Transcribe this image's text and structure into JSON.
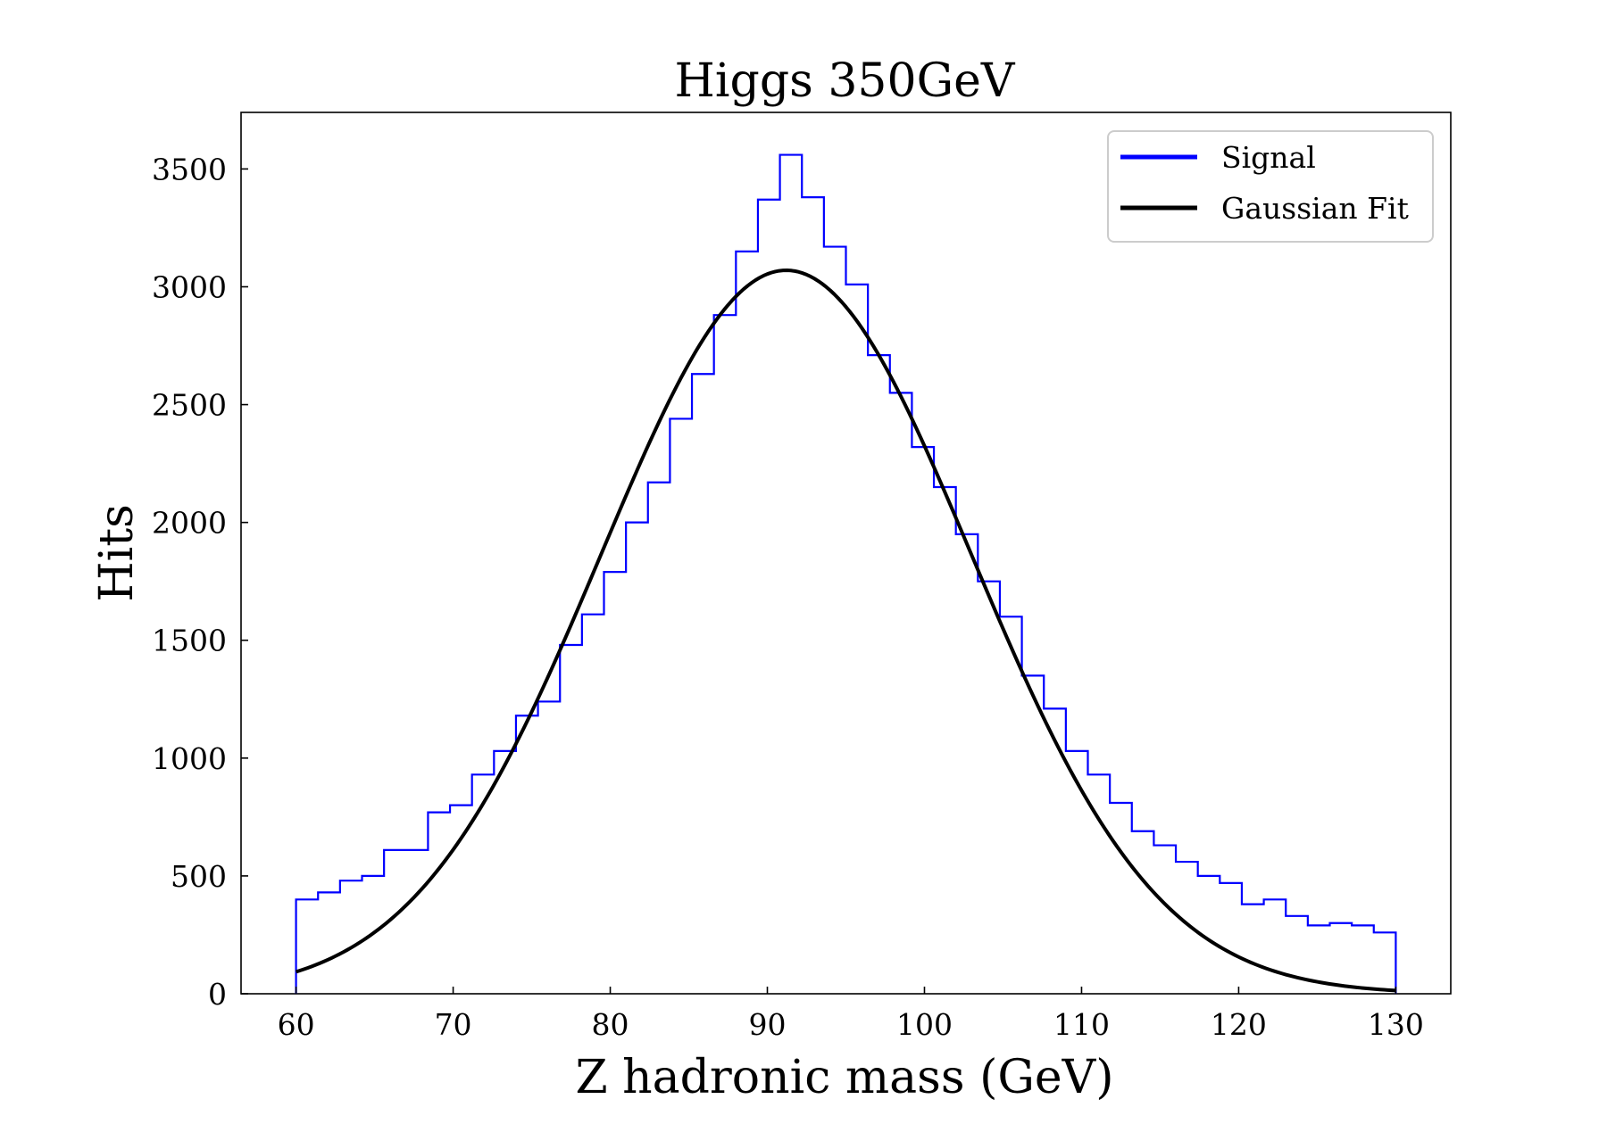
{
  "chart_data": {
    "type": "histogram",
    "title": "Higgs 350GeV",
    "xlabel": "Z hadronic mass (GeV)",
    "ylabel": "Hits",
    "xlim": [
      56.5,
      133.5
    ],
    "ylim": [
      0,
      3740
    ],
    "xticks": [
      60,
      70,
      80,
      90,
      100,
      110,
      120,
      130
    ],
    "yticks": [
      0,
      500,
      1000,
      1500,
      2000,
      2500,
      3000,
      3500
    ],
    "grid": false,
    "legend_position": "top-right",
    "bin_range": [
      60,
      130
    ],
    "series": [
      {
        "name": "Signal",
        "kind": "step-histogram",
        "color": "#0000ff",
        "values": [
          400,
          430,
          480,
          500,
          610,
          610,
          770,
          800,
          930,
          1030,
          1180,
          1240,
          1480,
          1610,
          1790,
          2000,
          2170,
          2440,
          2630,
          2880,
          3150,
          3370,
          3560,
          3380,
          3170,
          3010,
          2710,
          2550,
          2320,
          2150,
          1950,
          1750,
          1600,
          1350,
          1210,
          1030,
          930,
          810,
          690,
          630,
          560,
          500,
          470,
          380,
          400,
          330,
          290,
          300,
          290,
          260
        ]
      },
      {
        "name": "Gaussian Fit",
        "kind": "line",
        "color": "#000000",
        "amplitude": 3070,
        "mean": 91.2,
        "sigma": 11.8
      }
    ]
  }
}
